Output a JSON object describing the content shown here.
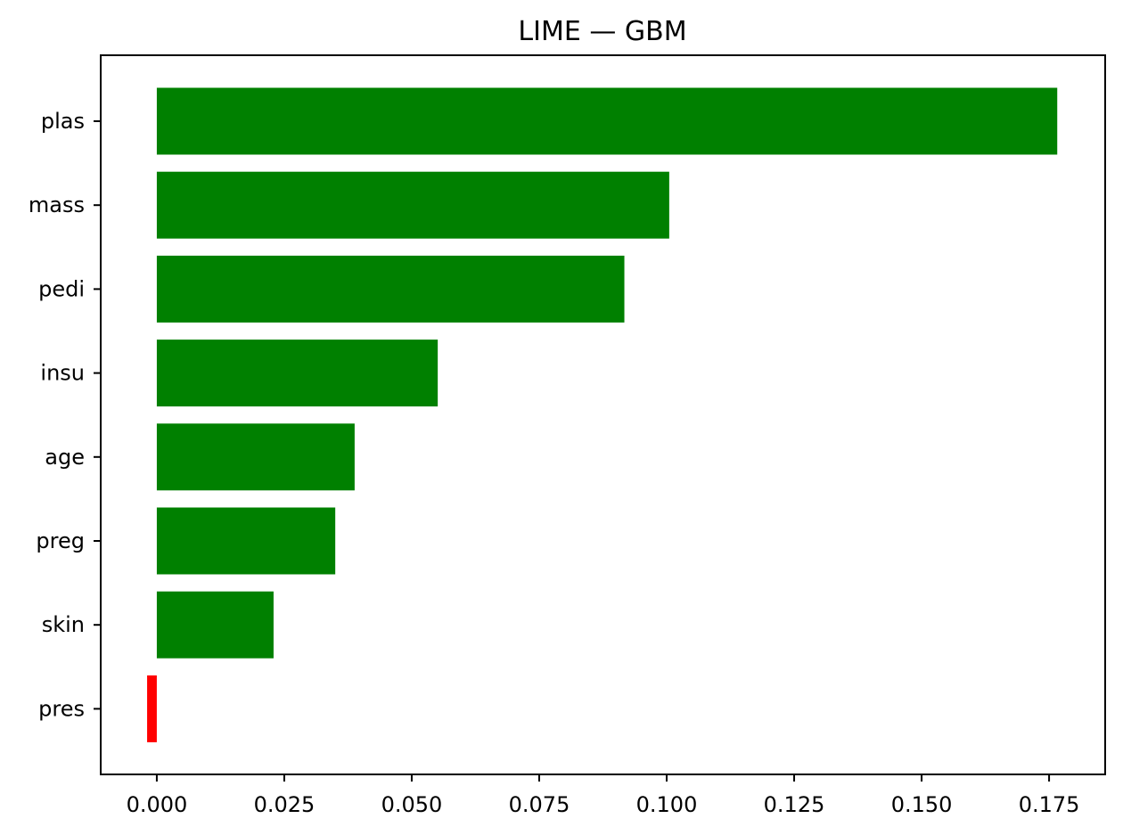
{
  "chart_data": {
    "type": "bar",
    "orientation": "horizontal",
    "title": "LIME — GBM",
    "xlabel": "",
    "ylabel": "",
    "categories": [
      "plas",
      "mass",
      "pedi",
      "insu",
      "age",
      "preg",
      "skin",
      "pres"
    ],
    "values": [
      0.1766,
      0.1005,
      0.0917,
      0.0551,
      0.0388,
      0.035,
      0.0229,
      -0.0019
    ],
    "xlim": [
      -0.011,
      0.186
    ],
    "xticks": [
      0.0,
      0.025,
      0.05,
      0.075,
      0.1,
      0.125,
      0.15,
      0.175
    ],
    "xtick_labels": [
      "0.000",
      "0.025",
      "0.050",
      "0.075",
      "0.100",
      "0.125",
      "0.150",
      "0.175"
    ],
    "grid": false,
    "legend": "none",
    "colors": {
      "positive": "#008000",
      "negative": "#ff0000",
      "axis": "#000000",
      "background": "#ffffff"
    }
  }
}
